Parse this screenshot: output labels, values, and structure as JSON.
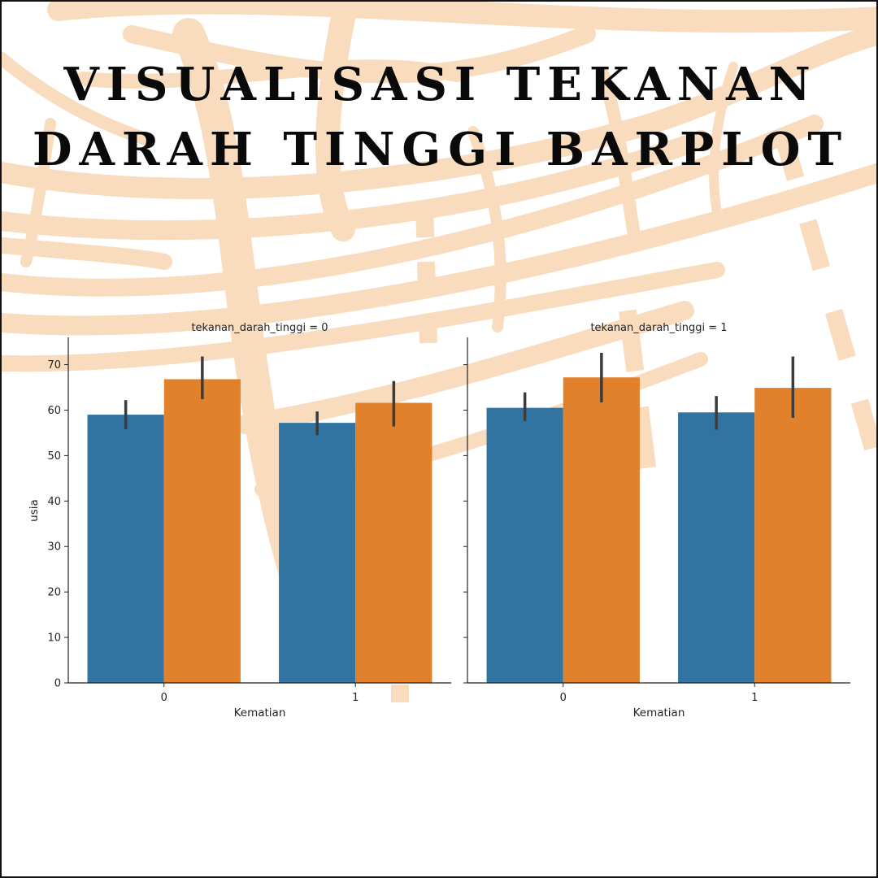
{
  "headline": {
    "line1": "VISUALISASI TEKANAN",
    "line2": "DARAH TINGGI BARPLOT"
  },
  "colors": {
    "blue": "#3274a1",
    "orange": "#e1812c",
    "errorbar": "#3c3c3c",
    "decoration": "#f8dcbd"
  },
  "chart_data": {
    "type": "bar",
    "ylabel": "usia",
    "ylim": [
      0,
      76
    ],
    "yticks": [
      0,
      10,
      20,
      30,
      40,
      50,
      60,
      70
    ],
    "facets": [
      {
        "title": "tekanan_darah_tinggi = 0",
        "xlabel": "Kematian",
        "categories": [
          "0",
          "1"
        ],
        "series": [
          {
            "values": [
              59,
              57.2
            ],
            "ci_low": [
              55.8,
              54.5
            ],
            "ci_high": [
              62.2,
              59.7
            ]
          },
          {
            "values": [
              66.8,
              61.6
            ],
            "ci_low": [
              62.4,
              56.4
            ],
            "ci_high": [
              71.8,
              66.4
            ]
          }
        ]
      },
      {
        "title": "tekanan_darah_tinggi = 1",
        "xlabel": "Kematian",
        "categories": [
          "0",
          "1"
        ],
        "series": [
          {
            "values": [
              60.5,
              59.5
            ],
            "ci_low": [
              57.6,
              55.7
            ],
            "ci_high": [
              63.9,
              63.1
            ]
          },
          {
            "values": [
              67.2,
              64.9
            ],
            "ci_low": [
              61.7,
              58.3
            ],
            "ci_high": [
              72.6,
              71.8
            ]
          }
        ]
      }
    ]
  }
}
